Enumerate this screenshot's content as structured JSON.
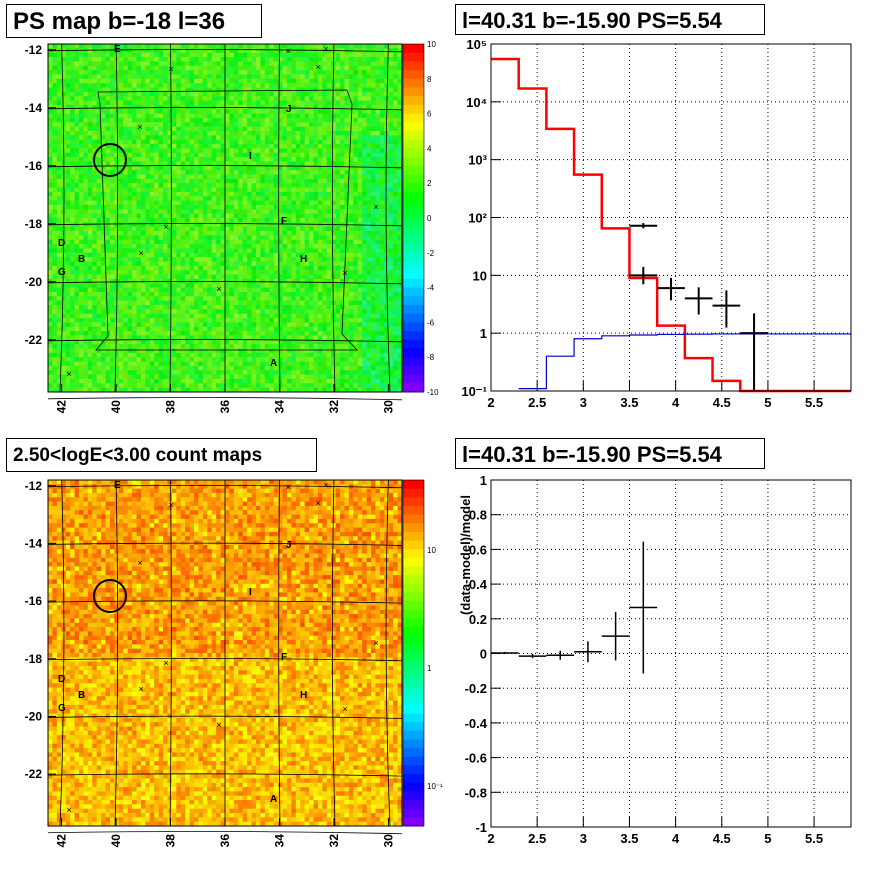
{
  "panels": {
    "map_top_title": "PS map b=-18 l=36",
    "spec_top_title": "l=40.31 b=-15.90 PS=5.54",
    "map_bottom_title": "2.50<logE<3.00 count maps",
    "ratio_bottom_title": "l=40.31 b=-15.90 PS=5.54"
  },
  "maps": {
    "x_ticks": [
      "42",
      "40",
      "38",
      "36",
      "34",
      "32",
      "30"
    ],
    "y_ticks": [
      "-12",
      "-14",
      "-16",
      "-18",
      "-20",
      "-22"
    ],
    "source_labels": [
      "E",
      "J",
      "I",
      "F",
      "D",
      "B",
      "G",
      "H",
      "C",
      "A"
    ],
    "top_colorbar_ticks": [
      "10",
      "8",
      "6",
      "4",
      "2",
      "0",
      "-2",
      "-4",
      "-6",
      "-8",
      "-10"
    ],
    "bottom_colorbar_ticks": [
      "10",
      "1",
      "10⁻¹"
    ]
  },
  "colors": {
    "red_histogram": "#ff0000",
    "blue_histogram": "#0000cc",
    "data_points": "#000000",
    "grid": "#000000"
  },
  "chart_data": [
    {
      "type": "heatmap",
      "title": "PS map b=-18 l=36",
      "xlim": [
        42.5,
        29.5
      ],
      "ylim": [
        -23.8,
        -11.8
      ],
      "zlim": [
        -10,
        10
      ],
      "xlabel": "",
      "ylabel": ""
    },
    {
      "type": "line",
      "title": "l=40.31 b=-15.90 PS=5.54",
      "log_y": true,
      "xlim": [
        2,
        5.9
      ],
      "ylim": [
        0.1,
        100000
      ],
      "x_ticks": [
        "2",
        "2.5",
        "3",
        "3.5",
        "4",
        "4.5",
        "5",
        "5.5"
      ],
      "y_ticks": [
        "10⁻¹",
        "1",
        "10",
        "10²",
        "10³",
        "10⁴",
        "10⁵"
      ],
      "series": [
        {
          "values": [
            {
              "x0": 2.0,
              "x1": 2.3,
              "y": 55000
            },
            {
              "x0": 2.3,
              "x1": 2.6,
              "y": 17000
            },
            {
              "x0": 2.6,
              "x1": 2.9,
              "y": 3400
            },
            {
              "x0": 2.9,
              "x1": 3.2,
              "y": 550
            },
            {
              "x0": 3.2,
              "x1": 3.5,
              "y": 65
            },
            {
              "x0": 3.5,
              "x1": 3.8,
              "y": 9
            },
            {
              "x0": 3.8,
              "x1": 4.1,
              "y": 1.35
            },
            {
              "x0": 4.1,
              "x1": 4.4,
              "y": 0.37
            },
            {
              "x0": 4.4,
              "x1": 4.7,
              "y": 0.15
            },
            {
              "x0": 4.7,
              "x1": 5.9,
              "y": 0.1
            }
          ]
        },
        {
          "values": [
            {
              "x0": 2.3,
              "x1": 2.6,
              "y": 0.11
            },
            {
              "x0": 2.6,
              "x1": 2.9,
              "y": 0.4
            },
            {
              "x0": 2.9,
              "x1": 3.2,
              "y": 0.8
            },
            {
              "x0": 3.2,
              "x1": 3.5,
              "y": 0.9
            },
            {
              "x0": 3.5,
              "x1": 3.8,
              "y": 0.93
            },
            {
              "x0": 3.8,
              "x1": 4.1,
              "y": 0.95
            },
            {
              "x0": 4.1,
              "x1": 4.4,
              "y": 0.96
            },
            {
              "x0": 4.4,
              "x1": 5.9,
              "y": 0.97
            }
          ]
        },
        {
          "values": [
            {
              "x": 3.65,
              "xerr": 0.15,
              "y": 72,
              "ylo": 65,
              "yhi": 80
            },
            {
              "x": 3.65,
              "xerr": 0.15,
              "y": 10,
              "ylo": 7,
              "yhi": 14
            },
            {
              "x": 3.95,
              "xerr": 0.15,
              "y": 6,
              "ylo": 3.7,
              "yhi": 9
            },
            {
              "x": 4.25,
              "xerr": 0.15,
              "y": 4,
              "ylo": 2.1,
              "yhi": 6.2
            },
            {
              "x": 4.55,
              "xerr": 0.15,
              "y": 3,
              "ylo": 1.25,
              "yhi": 5.5
            },
            {
              "x": 4.85,
              "xerr": 0.15,
              "y": 1,
              "ylo": 0.1,
              "yhi": 2.2
            }
          ]
        }
      ]
    },
    {
      "type": "heatmap",
      "title": "2.50<logE<3.00 count maps",
      "xlim": [
        42.5,
        29.5
      ],
      "ylim": [
        -23.8,
        -11.8
      ],
      "zlim": [
        0.05,
        30
      ],
      "log_z": true
    },
    {
      "type": "scatter",
      "title": "l=40.31 b=-15.90 PS=5.54",
      "xlim": [
        2,
        5.9
      ],
      "ylim": [
        -1,
        1
      ],
      "ylabel": "(data-model)/model",
      "x_ticks": [
        "2",
        "2.5",
        "3",
        "3.5",
        "4",
        "4.5",
        "5",
        "5.5"
      ],
      "y_ticks": [
        "1",
        "0.8",
        "0.6",
        "0.4",
        "0.2",
        "0",
        "-0.2",
        "-0.4",
        "-0.6",
        "-0.8",
        "-1"
      ],
      "series": [
        {
          "values": [
            {
              "x": 2.15,
              "xerr": 0.15,
              "y": 0.003,
              "yerr": 0.006
            },
            {
              "x": 2.45,
              "xerr": 0.15,
              "y": -0.015,
              "yerr": 0.012
            },
            {
              "x": 2.75,
              "xerr": 0.15,
              "y": -0.01,
              "yerr": 0.026
            },
            {
              "x": 3.05,
              "xerr": 0.15,
              "y": 0.01,
              "yerr": 0.06
            },
            {
              "x": 3.35,
              "xerr": 0.15,
              "y": 0.1,
              "yerr": 0.14
            },
            {
              "x": 3.65,
              "xerr": 0.15,
              "y": 0.265,
              "yerr": 0.38
            }
          ]
        }
      ]
    }
  ]
}
